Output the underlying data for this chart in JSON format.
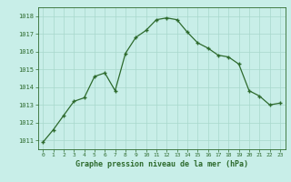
{
  "x": [
    0,
    1,
    2,
    3,
    4,
    5,
    6,
    7,
    8,
    9,
    10,
    11,
    12,
    13,
    14,
    15,
    16,
    17,
    18,
    19,
    20,
    21,
    22,
    23
  ],
  "y": [
    1010.9,
    1011.6,
    1012.4,
    1013.2,
    1013.4,
    1014.6,
    1014.8,
    1013.8,
    1015.9,
    1016.8,
    1017.2,
    1017.8,
    1017.9,
    1017.8,
    1017.1,
    1016.5,
    1016.2,
    1015.8,
    1015.7,
    1015.3,
    1013.8,
    1013.5,
    1013.0,
    1013.1
  ],
  "line_color": "#2d6a2d",
  "marker": "+",
  "bg_color": "#c8eee8",
  "grid_color": "#a8d8cc",
  "xlabel": "Graphe pression niveau de la mer (hPa)",
  "xlabel_color": "#2d6a2d",
  "tick_color": "#2d6a2d",
  "spine_color": "#2d6a2d",
  "ylim_min": 1010.5,
  "ylim_max": 1018.5,
  "yticks": [
    1011,
    1012,
    1013,
    1014,
    1015,
    1016,
    1017,
    1018
  ]
}
